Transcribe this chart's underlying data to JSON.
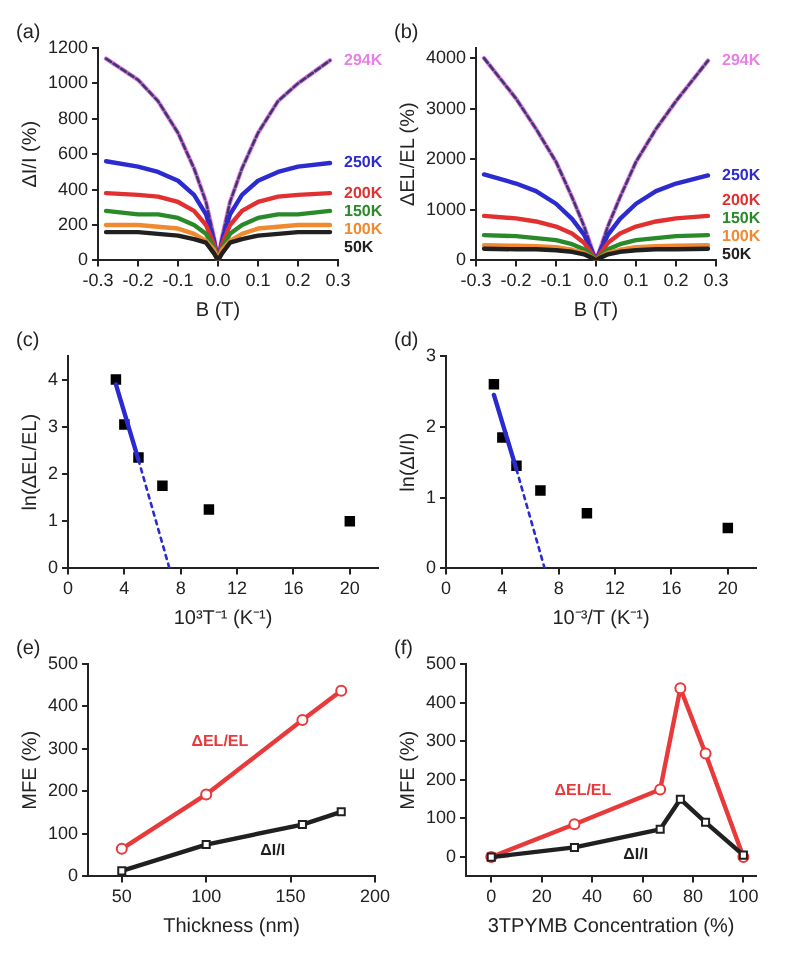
{
  "chart_data": [
    {
      "type": "line",
      "title": "(a)",
      "xlabel": "B (T)",
      "ylabel": "ΔI/I (%)",
      "xlim": [
        -0.3,
        0.3
      ],
      "xticks": [
        -0.3,
        -0.2,
        -0.1,
        {
          "value": 0,
          "label": "0.0"
        },
        0.1,
        0.2,
        0.3
      ],
      "ylim": [
        0,
        1200
      ],
      "yticks": [
        0,
        200,
        400,
        600,
        800,
        1000,
        1200
      ],
      "grid": false,
      "legend": false,
      "marker": "none",
      "x": [
        -0.28,
        -0.2,
        -0.15,
        -0.1,
        -0.06,
        -0.03,
        -0.01,
        0,
        0.01,
        0.03,
        0.06,
        0.1,
        0.15,
        0.2,
        0.28
      ],
      "series": [
        {
          "name": "294K",
          "color": "#e87ee8",
          "values": [
            1140,
            1020,
            900,
            720,
            520,
            330,
            130,
            0,
            130,
            330,
            520,
            720,
            900,
            1000,
            1130
          ]
        },
        {
          "color": "#3b3b6b",
          "line_style": "dashed",
          "values": [
            1140,
            1020,
            900,
            720,
            520,
            330,
            130,
            0,
            130,
            330,
            520,
            720,
            900,
            1000,
            1130
          ]
        },
        {
          "name": "250K",
          "color": "#2b2bd0",
          "values": [
            560,
            530,
            500,
            450,
            370,
            260,
            110,
            0,
            110,
            260,
            370,
            450,
            500,
            530,
            550
          ]
        },
        {
          "name": "200K",
          "color": "#e03030",
          "values": [
            380,
            370,
            360,
            330,
            280,
            200,
            90,
            0,
            90,
            200,
            280,
            330,
            360,
            370,
            380
          ]
        },
        {
          "name": "150K",
          "color": "#2a8a2a",
          "values": [
            280,
            260,
            260,
            240,
            200,
            150,
            70,
            0,
            70,
            150,
            200,
            240,
            260,
            260,
            280
          ]
        },
        {
          "name": "100K",
          "color": "#f08a30",
          "values": [
            200,
            200,
            190,
            180,
            150,
            110,
            60,
            0,
            60,
            110,
            150,
            180,
            190,
            200,
            200
          ]
        },
        {
          "name": "50K",
          "color": "#202020",
          "values": [
            160,
            160,
            150,
            140,
            120,
            100,
            40,
            0,
            40,
            100,
            120,
            140,
            150,
            160,
            160
          ]
        }
      ]
    },
    {
      "type": "line",
      "title": "(b)",
      "xlabel": "B (T)",
      "ylabel": "ΔEL/EL (%)",
      "xlim": [
        -0.3,
        0.3
      ],
      "xticks": [
        -0.3,
        -0.2,
        -0.1,
        {
          "value": 0,
          "label": "0.0"
        },
        0.1,
        0.2,
        0.3
      ],
      "ylim": [
        0,
        4200
      ],
      "yticks": [
        0,
        1000,
        2000,
        3000,
        4000
      ],
      "grid": false,
      "legend": false,
      "marker": "none",
      "x": [
        -0.28,
        -0.2,
        -0.15,
        -0.1,
        -0.06,
        -0.03,
        -0.01,
        0,
        0.01,
        0.03,
        0.06,
        0.1,
        0.15,
        0.2,
        0.28
      ],
      "series": [
        {
          "name": "294K",
          "color": "#e87ee8",
          "values": [
            4000,
            3200,
            2600,
            1950,
            1250,
            680,
            220,
            0,
            220,
            680,
            1250,
            1950,
            2600,
            3150,
            3950
          ]
        },
        {
          "color": "#3b3b6b",
          "line_style": "dashed",
          "values": [
            4000,
            3200,
            2600,
            1950,
            1250,
            680,
            220,
            0,
            220,
            680,
            1250,
            1950,
            2600,
            3150,
            3950
          ]
        },
        {
          "name": "250K",
          "color": "#2b2bd0",
          "values": [
            1700,
            1520,
            1370,
            1120,
            820,
            510,
            180,
            0,
            180,
            510,
            820,
            1120,
            1370,
            1520,
            1680
          ]
        },
        {
          "name": "200K",
          "color": "#e03030",
          "values": [
            880,
            830,
            770,
            670,
            530,
            350,
            130,
            0,
            130,
            350,
            530,
            670,
            770,
            830,
            880
          ]
        },
        {
          "name": "150K",
          "color": "#2a8a2a",
          "values": [
            500,
            480,
            440,
            400,
            320,
            220,
            90,
            0,
            90,
            220,
            320,
            400,
            440,
            480,
            500
          ]
        },
        {
          "name": "100K",
          "color": "#f08a30",
          "values": [
            300,
            290,
            280,
            260,
            210,
            150,
            60,
            0,
            60,
            150,
            210,
            260,
            280,
            290,
            300
          ]
        },
        {
          "name": "50K",
          "color": "#202020",
          "values": [
            230,
            220,
            220,
            200,
            170,
            120,
            50,
            0,
            50,
            120,
            170,
            200,
            220,
            220,
            230
          ]
        }
      ]
    },
    {
      "type": "scatter",
      "title": "(c)",
      "xlabel": "10³T⁻¹ (K⁻¹)",
      "ylabel": "ln(ΔEL/EL)",
      "xlim": [
        0,
        22
      ],
      "xticks": [
        0,
        4,
        8,
        12,
        16,
        20
      ],
      "ylim": [
        0,
        4.5
      ],
      "yticks": [
        0,
        1,
        2,
        3,
        4
      ],
      "grid": false,
      "legend": false,
      "series": [
        {
          "color": "#000000",
          "marker": "square",
          "x": [
            3.4,
            4,
            5,
            6.7,
            10,
            20
          ],
          "values": [
            4.0,
            3.05,
            2.35,
            1.75,
            1.25,
            1.0
          ]
        },
        {
          "type": "line",
          "color": "#2a2ad0",
          "line_style": "solid",
          "marker": "none",
          "x": [
            3.4,
            5
          ],
          "values": [
            3.9,
            2.3
          ]
        },
        {
          "type": "line",
          "color": "#2a2ad0",
          "line_style": "dotted",
          "marker": "none",
          "x": [
            5,
            7.2
          ],
          "values": [
            2.3,
            0
          ]
        }
      ]
    },
    {
      "type": "scatter",
      "title": "(d)",
      "xlabel": "10⁻³/T (K⁻¹)",
      "ylabel": "ln(ΔI/I)",
      "xlim": [
        0,
        22
      ],
      "xticks": [
        0,
        4,
        8,
        12,
        16,
        20
      ],
      "ylim": [
        0,
        3
      ],
      "yticks": [
        0,
        1,
        2,
        3
      ],
      "grid": false,
      "legend": false,
      "series": [
        {
          "color": "#000000",
          "marker": "square",
          "x": [
            3.4,
            4,
            5,
            6.7,
            10,
            20
          ],
          "values": [
            2.6,
            1.85,
            1.45,
            1.1,
            0.78,
            0.57
          ]
        },
        {
          "type": "line",
          "color": "#2a2ad0",
          "line_style": "solid",
          "marker": "none",
          "x": [
            3.4,
            5
          ],
          "values": [
            2.45,
            1.4
          ]
        },
        {
          "type": "line",
          "color": "#2a2ad0",
          "line_style": "dotted",
          "marker": "none",
          "x": [
            5,
            7
          ],
          "values": [
            1.4,
            0
          ]
        }
      ]
    },
    {
      "type": "line",
      "title": "(e)",
      "xlabel": "Thickness (nm)",
      "ylabel": "MFE (%)",
      "xlim": [
        30,
        200
      ],
      "xticks": [
        50,
        100,
        150,
        200
      ],
      "ylim": [
        0,
        500
      ],
      "yticks": [
        0,
        100,
        200,
        300,
        400,
        500
      ],
      "grid": false,
      "legend": false,
      "x": [
        50,
        100,
        157,
        180
      ],
      "series": [
        {
          "name": "ΔEL/EL",
          "color": "#e83a3a",
          "marker": "circle",
          "values": [
            65,
            193,
            368,
            437
          ]
        },
        {
          "name": "ΔI/I",
          "color": "#202020",
          "marker": "square",
          "values": [
            13,
            75,
            122,
            152
          ]
        }
      ]
    },
    {
      "type": "line",
      "title": "(f)",
      "xlabel": "3TPYMB Concentration (%)",
      "ylabel": "MFE (%)",
      "xlim": [
        -10,
        105
      ],
      "xticks": [
        0,
        20,
        40,
        60,
        80,
        100
      ],
      "ylim": [
        -50,
        500
      ],
      "yticks": [
        0,
        100,
        200,
        300,
        400,
        500
      ],
      "grid": false,
      "legend": false,
      "x": [
        0,
        33,
        67,
        75,
        85,
        100
      ],
      "series": [
        {
          "name": "ΔEL/EL",
          "color": "#e83a3a",
          "marker": "circle",
          "values": [
            0,
            85,
            175,
            437,
            268,
            0
          ]
        },
        {
          "name": "ΔI/I",
          "color": "#202020",
          "marker": "square",
          "values": [
            0,
            25,
            72,
            150,
            90,
            5
          ]
        }
      ]
    }
  ]
}
